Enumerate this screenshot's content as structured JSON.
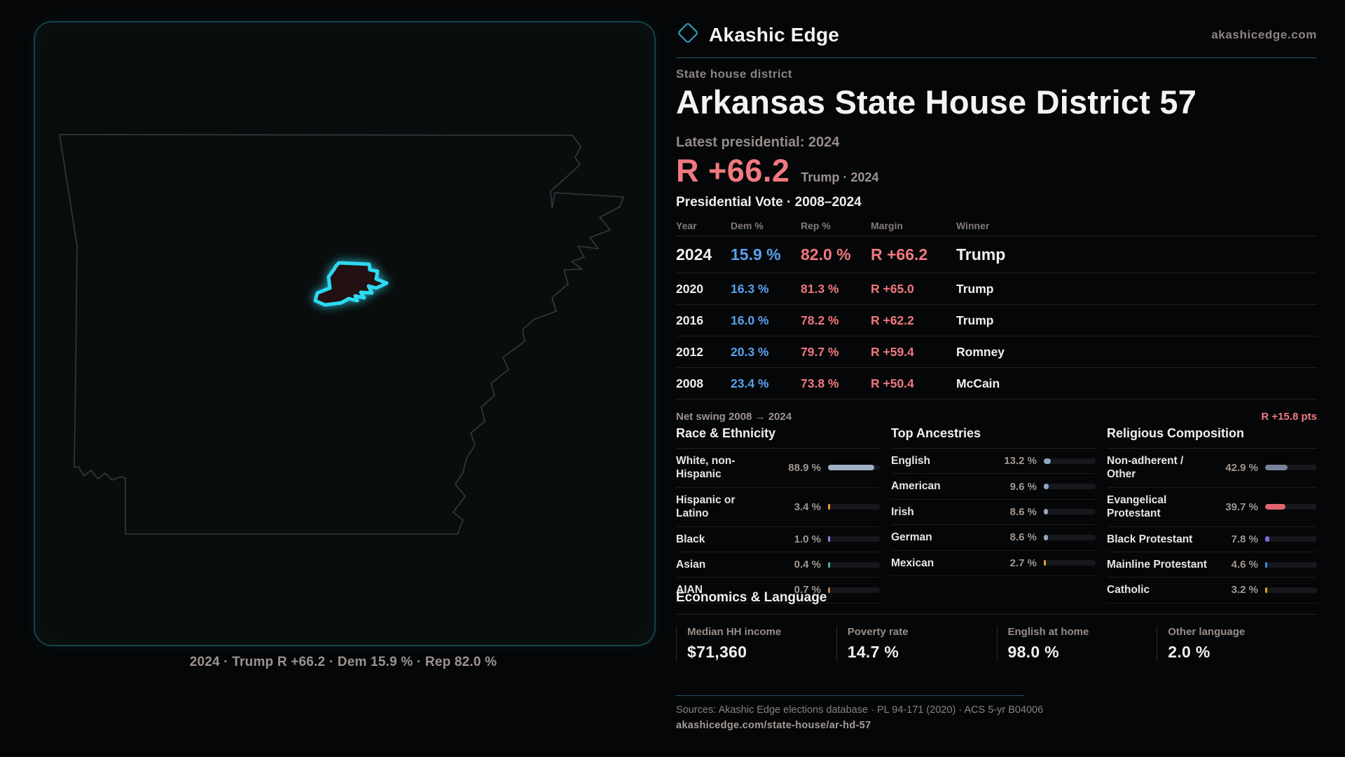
{
  "brand": {
    "name": "Akashic Edge",
    "site_url": "akashicedge.com"
  },
  "header": {
    "kicker": "State house district",
    "title": "Arkansas State House District 57"
  },
  "latest": {
    "label": "Latest presidential: 2024",
    "margin": "R +66.2",
    "context": "Trump · 2024"
  },
  "results": {
    "title": "Presidential Vote · 2008–2024",
    "columns": [
      "Year",
      "Dem %",
      "Rep %",
      "Margin",
      "Winner"
    ],
    "rows": [
      {
        "year": "2024",
        "dem": "15.9 %",
        "rep": "82.0 %",
        "margin": "R +66.2",
        "winner": "Trump"
      },
      {
        "year": "2020",
        "dem": "16.3 %",
        "rep": "81.3 %",
        "margin": "R +65.0",
        "winner": "Trump"
      },
      {
        "year": "2016",
        "dem": "16.0 %",
        "rep": "78.2 %",
        "margin": "R +62.2",
        "winner": "Trump"
      },
      {
        "year": "2012",
        "dem": "20.3 %",
        "rep": "79.7 %",
        "margin": "R +59.4",
        "winner": "Romney"
      },
      {
        "year": "2008",
        "dem": "23.4 %",
        "rep": "73.8 %",
        "margin": "R +50.4",
        "winner": "McCain"
      }
    ],
    "net_swing_label": "Net swing 2008 → 2024",
    "net_swing_value": "R +15.8 pts"
  },
  "demographics": {
    "race": {
      "title": "Race & Ethnicity",
      "rows": [
        {
          "label": "White, non-Hispanic",
          "value": "88.9 %",
          "pct": 88.9,
          "color": "#9fb0c6"
        },
        {
          "label": "Hispanic or Latino",
          "value": "3.4 %",
          "pct": 3.4,
          "color": "#e39b2d"
        },
        {
          "label": "Black",
          "value": "1.0 %",
          "pct": 1.0,
          "color": "#8b82e8"
        },
        {
          "label": "Asian",
          "value": "0.4 %",
          "pct": 0.4,
          "color": "#46b29a"
        },
        {
          "label": "AIAN",
          "value": "0.7 %",
          "pct": 0.7,
          "color": "#c97e36"
        }
      ]
    },
    "ancestries": {
      "title": "Top Ancestries",
      "rows": [
        {
          "label": "English",
          "value": "13.2 %",
          "pct": 13.2,
          "color": "#8fa6c2"
        },
        {
          "label": "American",
          "value": "9.6 %",
          "pct": 9.6,
          "color": "#8fa6c2"
        },
        {
          "label": "Irish",
          "value": "8.6 %",
          "pct": 8.6,
          "color": "#8fa6c2"
        },
        {
          "label": "German",
          "value": "8.6 %",
          "pct": 8.6,
          "color": "#8fa6c2"
        },
        {
          "label": "Mexican",
          "value": "2.7 %",
          "pct": 2.7,
          "color": "#e0a12a"
        }
      ]
    },
    "religion": {
      "title": "Religious Composition",
      "rows": [
        {
          "label": "Non-adherent / Other",
          "value": "42.9 %",
          "pct": 42.9,
          "color": "#76839b"
        },
        {
          "label": "Evangelical Protestant",
          "value": "39.7 %",
          "pct": 39.7,
          "color": "#e0646e"
        },
        {
          "label": "Black Protestant",
          "value": "7.8 %",
          "pct": 7.8,
          "color": "#8266e6"
        },
        {
          "label": "Mainline Protestant",
          "value": "4.6 %",
          "pct": 4.6,
          "color": "#3e8ee6"
        },
        {
          "label": "Catholic",
          "value": "3.2 %",
          "pct": 3.2,
          "color": "#d9a421"
        }
      ]
    }
  },
  "economics": {
    "title": "Economics & Language",
    "stats": [
      {
        "label": "Median HH income",
        "value": "$71,360"
      },
      {
        "label": "Poverty rate",
        "value": "14.7 %"
      },
      {
        "label": "English at home",
        "value": "98.0 %"
      },
      {
        "label": "Other language",
        "value": "2.0 %"
      }
    ]
  },
  "map": {
    "caption": "2024 · Trump R +66.2 · Dem 15.9 % · Rep 82.0 %"
  },
  "footer": {
    "sources": "Sources: Akashic Edge elections database · PL 94-171 (2020) · ACS 5-yr B04006",
    "permalink": "akashicedge.com/state-house/ar-hd-57"
  },
  "colors": {
    "accent_teal": "#2fd9f2",
    "dem_blue": "#5aa2f0",
    "rep_red": "#f0797f"
  }
}
